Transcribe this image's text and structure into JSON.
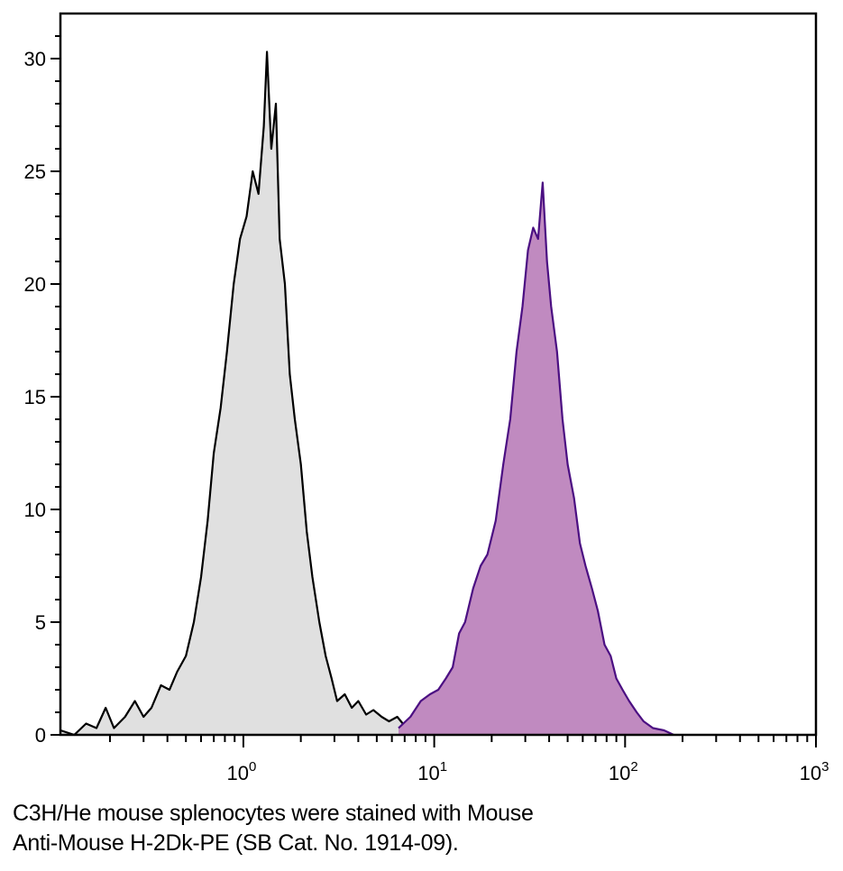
{
  "chart_data": {
    "type": "area",
    "title": "",
    "xlabel": "",
    "ylabel": "",
    "xscale": "log",
    "xlim": [
      0.11,
      1000
    ],
    "ylim": [
      0,
      32
    ],
    "grid": false,
    "x_tick_labels": [
      {
        "base": "10",
        "exp": "0",
        "value": 1
      },
      {
        "base": "10",
        "exp": "1",
        "value": 10
      },
      {
        "base": "10",
        "exp": "2",
        "value": 100
      },
      {
        "base": "10",
        "exp": "3",
        "value": 1000
      }
    ],
    "y_ticks": [
      0,
      5,
      10,
      15,
      20,
      25,
      30
    ],
    "series": [
      {
        "line_color": "#000000",
        "fill_color": "#e0e0e0",
        "x": [
          0.11,
          0.13,
          0.15,
          0.17,
          0.19,
          0.21,
          0.24,
          0.27,
          0.3,
          0.33,
          0.37,
          0.41,
          0.45,
          0.5,
          0.55,
          0.6,
          0.65,
          0.7,
          0.76,
          0.82,
          0.89,
          0.96,
          1.04,
          1.12,
          1.2,
          1.28,
          1.33,
          1.4,
          1.48,
          1.55,
          1.65,
          1.75,
          1.86,
          2.0,
          2.15,
          2.3,
          2.5,
          2.7,
          2.9,
          3.1,
          3.4,
          3.7,
          4.0,
          4.4,
          4.8,
          5.3,
          5.8,
          6.4,
          7.0,
          7.7,
          8.5,
          9.3
        ],
        "y": [
          0.2,
          0,
          0.5,
          0.3,
          1.2,
          0.3,
          0.8,
          1.5,
          0.8,
          1.2,
          2.2,
          2.0,
          2.8,
          3.5,
          5.0,
          7.0,
          9.5,
          12.5,
          14.5,
          17,
          20,
          22,
          23,
          25,
          24,
          27,
          30.3,
          26,
          28,
          22,
          20,
          16,
          14,
          12,
          9,
          7,
          5,
          3.5,
          2.5,
          1.5,
          1.8,
          1.2,
          1.5,
          0.9,
          1.1,
          0.8,
          0.6,
          0.8,
          0.4,
          0.6,
          0.2,
          0
        ]
      },
      {
        "line_color": "#4b0f82",
        "fill_color": "#c08ac0",
        "x": [
          6.5,
          7.5,
          8.5,
          9.5,
          10.5,
          11.5,
          12.5,
          13.5,
          14.5,
          16,
          17.5,
          19,
          21,
          23,
          25,
          27,
          29,
          31,
          33,
          35,
          37,
          39,
          41,
          44,
          47,
          50,
          54,
          58,
          62,
          67,
          72,
          78,
          84,
          90,
          97,
          105,
          115,
          125,
          140,
          160,
          180
        ],
        "y": [
          0.3,
          0.8,
          1.5,
          1.8,
          2.0,
          2.5,
          3.0,
          4.5,
          5.0,
          6.5,
          7.5,
          8.0,
          9.5,
          12,
          14,
          17,
          19,
          21.5,
          22.5,
          22,
          24.5,
          21,
          19,
          17,
          14,
          12,
          10.5,
          8.5,
          7.5,
          6.5,
          5.5,
          4.0,
          3.5,
          2.5,
          2.0,
          1.5,
          1.0,
          0.6,
          0.3,
          0.2,
          0
        ]
      }
    ]
  },
  "caption": {
    "line1": "C3H/He mouse splenocytes were stained with Mouse",
    "line2": "Anti-Mouse H-2Dk-PE (SB Cat. No. 1914-09)."
  }
}
